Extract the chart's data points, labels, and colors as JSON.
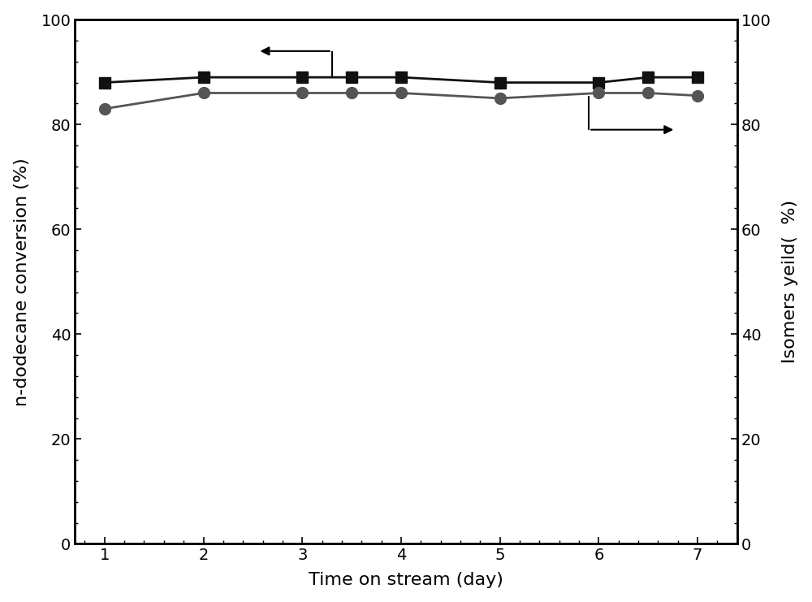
{
  "x": [
    1,
    2,
    3,
    3.5,
    4,
    5,
    6,
    6.5,
    7
  ],
  "conversion": [
    88,
    89,
    89,
    89,
    89,
    88,
    88,
    89,
    89
  ],
  "isomer_yield": [
    83,
    86,
    86,
    86,
    86,
    85,
    86,
    86,
    85.5
  ],
  "xlabel": "Time on stream (day)",
  "ylabel_left": "n-dodecane conversion (%)",
  "ylabel_right": "Isomers yeild(  %)",
  "xlim": [
    0.7,
    7.4
  ],
  "ylim": [
    0,
    100
  ],
  "xticks": [
    1,
    2,
    3,
    4,
    5,
    6,
    7
  ],
  "yticks": [
    0,
    20,
    40,
    60,
    80,
    100
  ],
  "conversion_color": "#111111",
  "isomer_color": "#555555",
  "xlabel_fontsize": 16,
  "ylabel_fontsize": 16,
  "tick_labelsize": 14,
  "line_width": 2.0,
  "marker_size": 10
}
